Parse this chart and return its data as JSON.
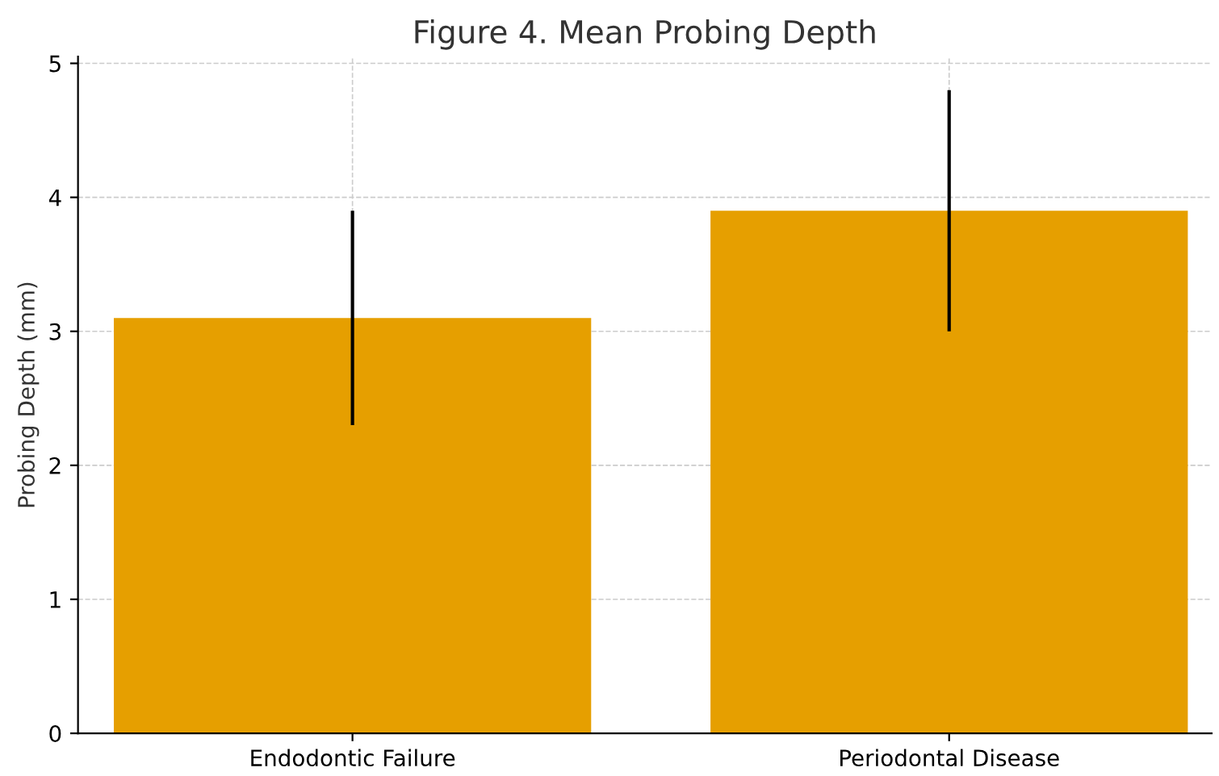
{
  "chart_data": {
    "type": "bar",
    "title": "Figure 4. Mean Probing Depth",
    "ylabel": "Probing Depth (mm)",
    "categories": [
      "Endodontic Failure",
      "Periodontal Disease"
    ],
    "values": [
      3.1,
      3.9
    ],
    "errors": [
      0.8,
      0.9
    ],
    "color": "#e69f00",
    "ylim": [
      0,
      5.05
    ],
    "yticks": [
      0,
      1,
      2,
      3,
      4,
      5
    ],
    "grid": true
  }
}
